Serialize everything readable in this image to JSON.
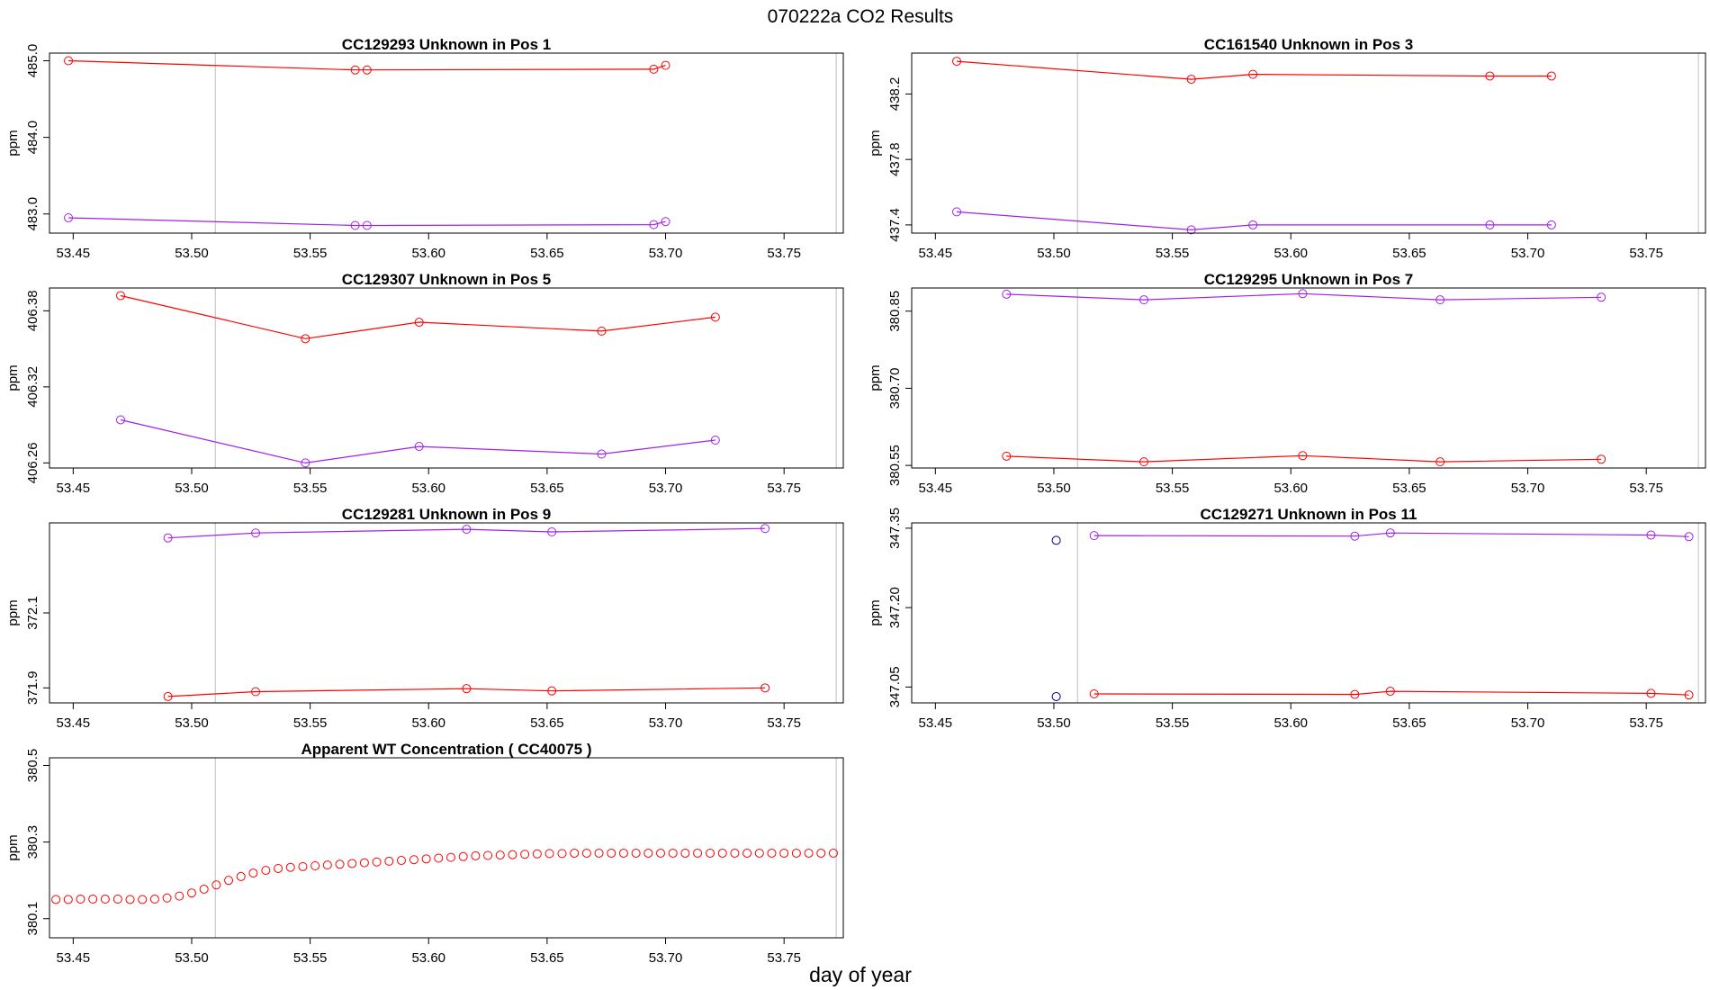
{
  "figure": {
    "title": "070222a  CO2 Results",
    "xlabel": "day of year"
  },
  "chart_data": [
    {
      "type": "line",
      "title": "CC129293    Unknown in Pos 1",
      "ylabel": "ppm",
      "xlim": [
        53.44,
        53.775
      ],
      "ylim": [
        482.75,
        485.1
      ],
      "xticks": [
        "53.45",
        "53.50",
        "53.55",
        "53.60",
        "53.65",
        "53.70",
        "53.75"
      ],
      "yticks": [
        "483.0",
        "484.0",
        "485.0"
      ],
      "vlines": [
        53.51,
        53.772
      ],
      "series": [
        {
          "name": "upper",
          "color": "#ff0000",
          "x": [
            53.448,
            53.569,
            53.574,
            53.695,
            53.7
          ],
          "y": [
            485.0,
            484.88,
            484.88,
            484.89,
            484.94
          ]
        },
        {
          "name": "lower",
          "color": "#a020f0",
          "x": [
            53.448,
            53.569,
            53.574,
            53.695,
            53.7
          ],
          "y": [
            482.95,
            482.85,
            482.85,
            482.86,
            482.9
          ]
        }
      ]
    },
    {
      "type": "line",
      "title": "CC161540    Unknown in Pos 3",
      "ylabel": "ppm",
      "xlim": [
        53.44,
        53.775
      ],
      "ylim": [
        437.35,
        438.45
      ],
      "xticks": [
        "53.45",
        "53.50",
        "53.55",
        "53.60",
        "53.65",
        "53.70",
        "53.75"
      ],
      "yticks": [
        "437.4",
        "437.8",
        "438.2"
      ],
      "vlines": [
        53.51,
        53.772
      ],
      "series": [
        {
          "name": "upper",
          "color": "#ff0000",
          "x": [
            53.459,
            53.558,
            53.584,
            53.684,
            53.71
          ],
          "y": [
            438.4,
            438.29,
            438.32,
            438.31,
            438.31
          ]
        },
        {
          "name": "lower",
          "color": "#a020f0",
          "x": [
            53.459,
            53.558,
            53.584,
            53.684,
            53.71
          ],
          "y": [
            437.48,
            437.37,
            437.4,
            437.4,
            437.4
          ]
        }
      ]
    },
    {
      "type": "line",
      "title": "CC129307    Unknown in Pos 5",
      "ylabel": "ppm",
      "xlim": [
        53.44,
        53.775
      ],
      "ylim": [
        406.256,
        406.398
      ],
      "xticks": [
        "53.45",
        "53.50",
        "53.55",
        "53.60",
        "53.65",
        "53.70",
        "53.75"
      ],
      "yticks": [
        "406.26",
        "406.32",
        "406.38"
      ],
      "vlines": [
        53.51,
        53.772
      ],
      "series": [
        {
          "name": "upper",
          "color": "#ff0000",
          "x": [
            53.47,
            53.548,
            53.596,
            53.673,
            53.721
          ],
          "y": [
            406.392,
            406.358,
            406.371,
            406.364,
            406.375
          ]
        },
        {
          "name": "lower",
          "color": "#a020f0",
          "x": [
            53.47,
            53.548,
            53.596,
            53.673,
            53.721
          ],
          "y": [
            406.294,
            406.26,
            406.273,
            406.267,
            406.278
          ]
        }
      ]
    },
    {
      "type": "line",
      "title": "CC129295    Unknown in Pos 7",
      "ylabel": "ppm",
      "xlim": [
        53.44,
        53.775
      ],
      "ylim": [
        380.545,
        380.895
      ],
      "xticks": [
        "53.45",
        "53.50",
        "53.55",
        "53.60",
        "53.65",
        "53.70",
        "53.75"
      ],
      "yticks": [
        "380.55",
        "380.70",
        "380.85"
      ],
      "vlines": [
        53.51,
        53.772
      ],
      "series": [
        {
          "name": "upper",
          "color": "#a020f0",
          "x": [
            53.48,
            53.538,
            53.605,
            53.663,
            53.731
          ],
          "y": [
            380.883,
            380.872,
            380.884,
            380.872,
            380.877
          ]
        },
        {
          "name": "lower",
          "color": "#ff0000",
          "x": [
            53.48,
            53.538,
            53.605,
            53.663,
            53.731
          ],
          "y": [
            380.568,
            380.557,
            380.569,
            380.557,
            380.562
          ]
        }
      ]
    },
    {
      "type": "line",
      "title": "CC129281    Unknown in Pos 9",
      "ylabel": "ppm",
      "xlim": [
        53.44,
        53.775
      ],
      "ylim": [
        371.86,
        372.34
      ],
      "xticks": [
        "53.45",
        "53.50",
        "53.55",
        "53.60",
        "53.65",
        "53.70",
        "53.75"
      ],
      "yticks": [
        "371.9",
        "372.1"
      ],
      "vlines": [
        53.51,
        53.772
      ],
      "series": [
        {
          "name": "upper",
          "color": "#a020f0",
          "x": [
            53.49,
            53.527,
            53.616,
            53.652,
            53.742
          ],
          "y": [
            372.3,
            372.313,
            372.323,
            372.316,
            372.325
          ]
        },
        {
          "name": "lower",
          "color": "#ff0000",
          "x": [
            53.49,
            53.527,
            53.616,
            53.652,
            53.742
          ],
          "y": [
            371.877,
            371.89,
            371.898,
            371.892,
            371.9
          ]
        }
      ]
    },
    {
      "type": "line",
      "title": "CC129271    Unknown in Pos 11",
      "ylabel": "ppm",
      "xlim": [
        53.44,
        53.775
      ],
      "ylim": [
        347.02,
        347.36
      ],
      "xticks": [
        "53.45",
        "53.50",
        "53.55",
        "53.60",
        "53.65",
        "53.70",
        "53.75"
      ],
      "yticks": [
        "347.05",
        "347.20",
        "347.35"
      ],
      "vlines": [
        53.51,
        53.772
      ],
      "series": [
        {
          "name": "upper",
          "color": "#a020f0",
          "x": [
            53.517,
            53.627,
            53.642,
            53.752,
            53.768
          ],
          "y": [
            347.336,
            347.335,
            347.341,
            347.337,
            347.334
          ]
        },
        {
          "name": "lower",
          "color": "#ff0000",
          "x": [
            53.517,
            53.627,
            53.642,
            53.752,
            53.768
          ],
          "y": [
            347.037,
            347.036,
            347.042,
            347.038,
            347.035
          ]
        },
        {
          "name": "isolated",
          "color": "#000080",
          "points_only": true,
          "x": [
            53.501,
            53.501
          ],
          "y": [
            347.327,
            347.032
          ]
        }
      ]
    },
    {
      "type": "scatter",
      "title": "Apparent WT Concentration ( CC40075 )",
      "ylabel": "ppm",
      "xlim": [
        53.44,
        53.775
      ],
      "ylim": [
        380.05,
        380.52
      ],
      "xticks": [
        "53.45",
        "53.50",
        "53.55",
        "53.60",
        "53.65",
        "53.70",
        "53.75"
      ],
      "yticks": [
        "380.1",
        "380.3",
        "380.5"
      ],
      "vlines": [
        53.51,
        53.772
      ],
      "series": [
        {
          "name": "WT",
          "color": "#ff0000",
          "points_only": true,
          "x": [
            53.4427,
            53.4479,
            53.4531,
            53.4583,
            53.4635,
            53.4688,
            53.474,
            53.4792,
            53.4844,
            53.4896,
            53.4948,
            53.5,
            53.5052,
            53.5104,
            53.5156,
            53.5208,
            53.526,
            53.5313,
            53.5365,
            53.5417,
            53.5469,
            53.5521,
            53.5573,
            53.5625,
            53.5677,
            53.5729,
            53.5781,
            53.5833,
            53.5885,
            53.5938,
            53.599,
            53.6042,
            53.6094,
            53.6146,
            53.6198,
            53.625,
            53.6302,
            53.6354,
            53.6406,
            53.6458,
            53.651,
            53.6563,
            53.6615,
            53.6667,
            53.6719,
            53.6771,
            53.6823,
            53.6875,
            53.6927,
            53.6979,
            53.7031,
            53.7083,
            53.7135,
            53.7188,
            53.724,
            53.7292,
            53.7344,
            53.7396,
            53.7448,
            53.75,
            53.7552,
            53.7604,
            53.7656,
            53.7708
          ],
          "y": [
            380.15,
            380.15,
            380.151,
            380.151,
            380.151,
            380.151,
            380.15,
            380.15,
            380.151,
            380.154,
            380.159,
            380.167,
            380.177,
            380.188,
            380.2,
            380.21,
            380.219,
            380.226,
            380.231,
            380.234,
            380.236,
            380.238,
            380.24,
            380.242,
            380.244,
            380.246,
            380.248,
            380.25,
            380.252,
            380.254,
            380.256,
            380.258,
            380.26,
            380.262,
            380.264,
            380.265,
            380.266,
            380.267,
            380.268,
            380.269,
            380.27,
            380.27,
            380.271,
            380.271,
            380.271,
            380.271,
            380.271,
            380.271,
            380.271,
            380.271,
            380.271,
            380.271,
            380.271,
            380.271,
            380.271,
            380.271,
            380.271,
            380.271,
            380.271,
            380.271,
            380.271,
            380.271,
            380.271,
            380.271
          ]
        }
      ]
    }
  ]
}
